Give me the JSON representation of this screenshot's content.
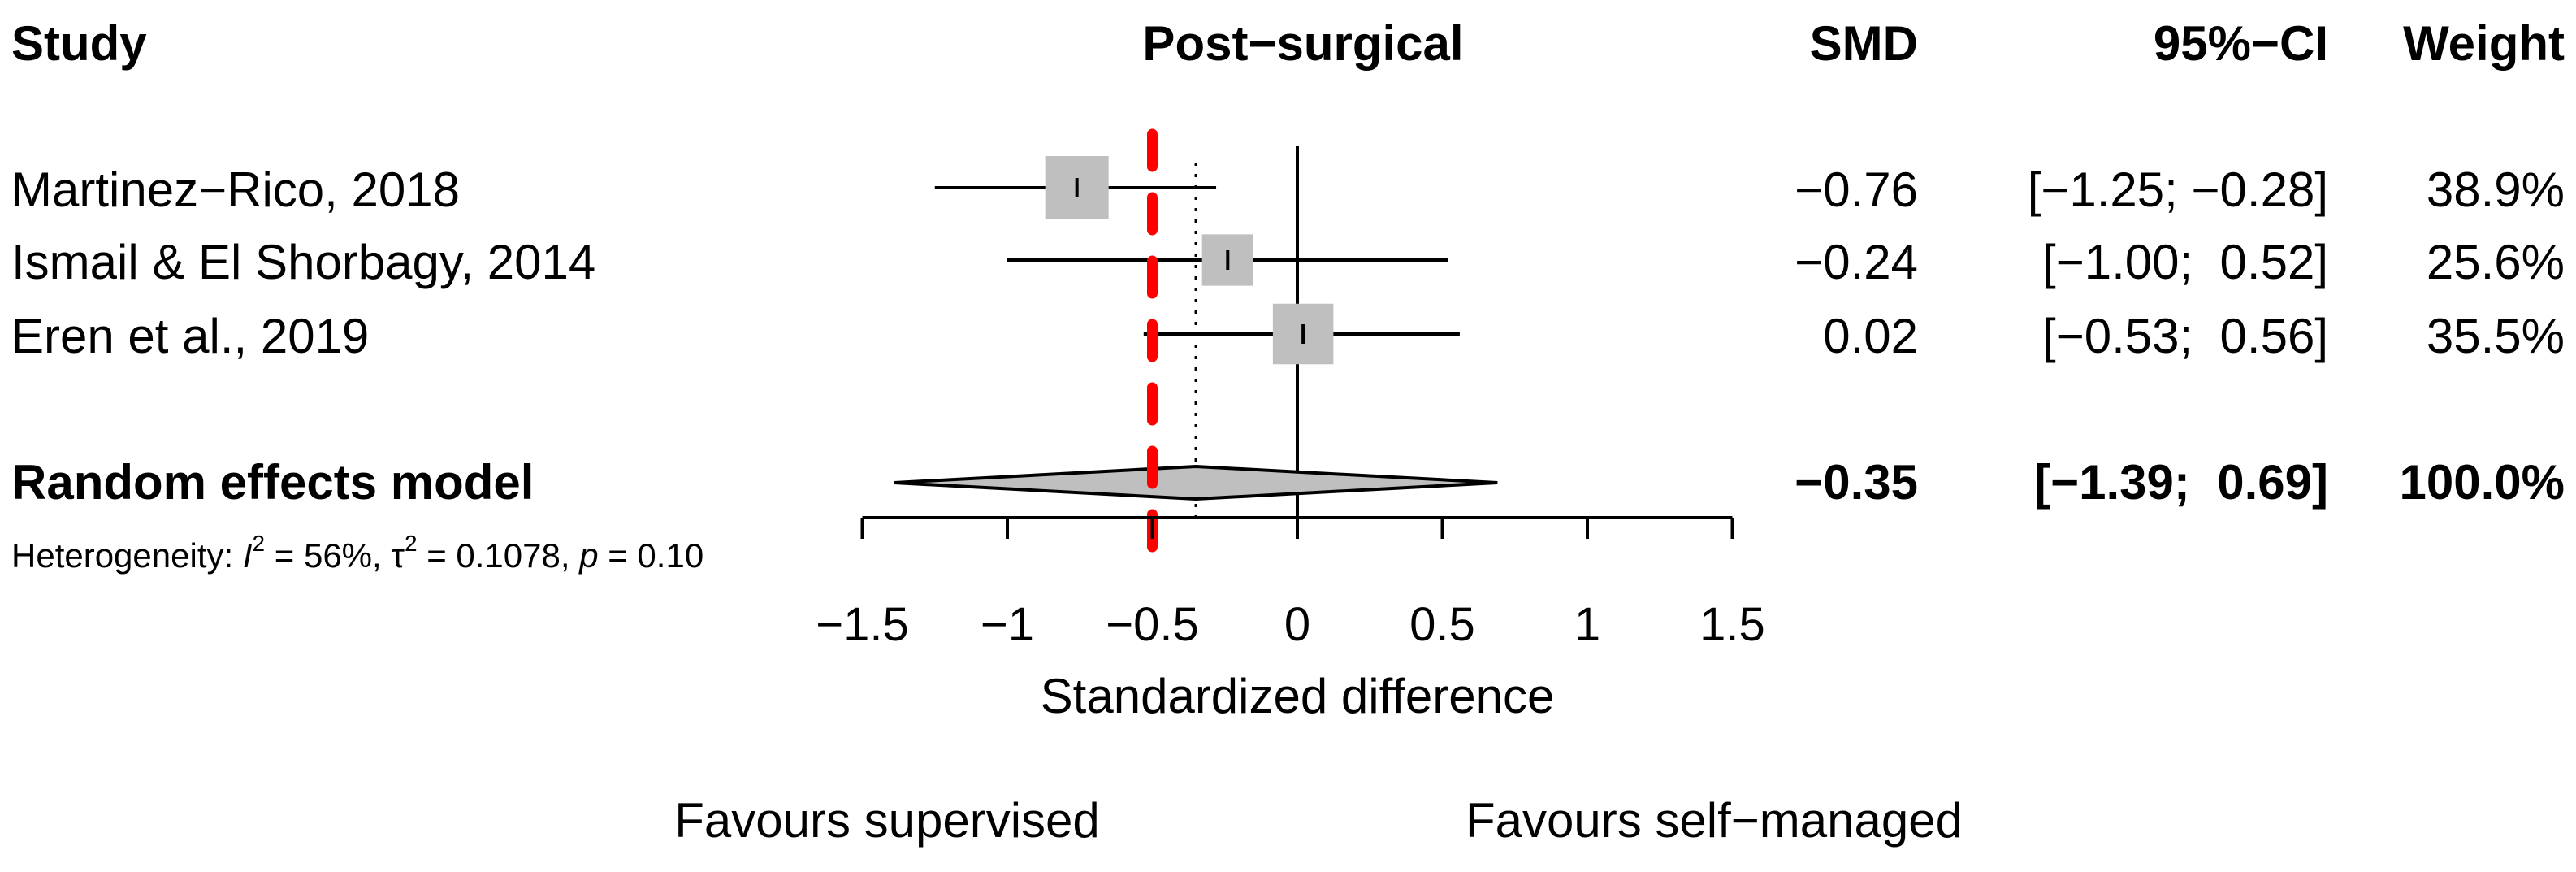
{
  "chart_data": {
    "type": "forest",
    "title": "Post−surgical",
    "headers": {
      "study": "Study",
      "smd": "SMD",
      "ci": "95%−CI",
      "weight": "Weight"
    },
    "studies": [
      {
        "name": "Martinez−Rico, 2018",
        "smd": -0.76,
        "lower": -1.25,
        "upper": -0.28,
        "weight": 38.9,
        "smd_label": "−0.76",
        "ci_label": "[−1.25; −0.28]",
        "weight_label": "38.9%"
      },
      {
        "name": "Ismail & El Shorbagy, 2014",
        "smd": -0.24,
        "lower": -1.0,
        "upper": 0.52,
        "weight": 25.6,
        "smd_label": "−0.24",
        "ci_label": "[−1.00;  0.52]",
        "weight_label": "25.6%"
      },
      {
        "name": "Eren et al., 2019",
        "smd": 0.02,
        "lower": -0.53,
        "upper": 0.56,
        "weight": 35.5,
        "smd_label": "0.02",
        "ci_label": "[−0.53;  0.56]",
        "weight_label": "35.5%"
      }
    ],
    "pooled": {
      "name": "Random effects model",
      "smd": -0.35,
      "lower": -1.39,
      "upper": 0.69,
      "smd_label": "−0.35",
      "ci_label": "[−1.39;  0.69]",
      "weight_label": "100.0%"
    },
    "heterogeneity": {
      "prefix": "Heterogeneity: ",
      "i_symbol": "I",
      "i_sup": "2",
      "i_value": " = 56%, ",
      "tau_symbol": "τ",
      "tau_sup": "2",
      "tau_value": " = 0.1078, ",
      "p_symbol": "p",
      "p_value": " = 0.10"
    },
    "reference_line": -0.5,
    "null_line": 0,
    "xlim": [
      -1.5,
      1.5
    ],
    "xticks": [
      -1.5,
      -1,
      -0.5,
      0,
      0.5,
      1,
      1.5
    ],
    "xtick_labels": [
      "−1.5",
      "−1",
      "−0.5",
      "0",
      "0.5",
      "1",
      "1.5"
    ],
    "xlabel": "Standardized difference",
    "favours_left": "Favours supervised",
    "favours_right": "Favours self−managed",
    "colors": {
      "square": "#bfbfbf",
      "diamond": "#bfbfbf",
      "reference": "#ff0000",
      "line": "#000000"
    }
  }
}
